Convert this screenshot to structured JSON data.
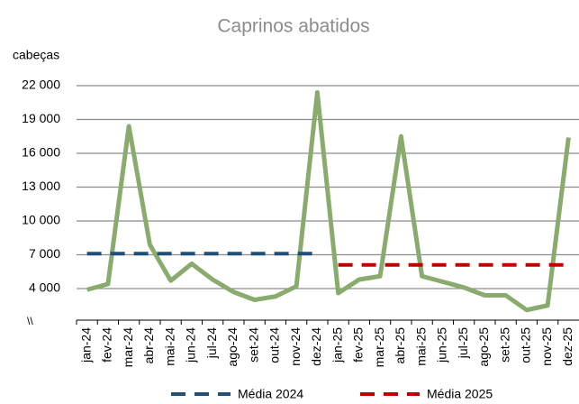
{
  "chart_data": {
    "type": "line",
    "title": "Caprinos abatidos",
    "y_label": "cabeças",
    "categories": [
      "jan-24",
      "fev-24",
      "mar-24",
      "abr-24",
      "mai-24",
      "jun-24",
      "jul-24",
      "ago-24",
      "set-24",
      "out-24",
      "nov-24",
      "dez-24",
      "jan-25",
      "fev-25",
      "mar-25",
      "abr-25",
      "mai-25",
      "jun-25",
      "jul-25",
      "ago-25",
      "set-25",
      "out-25",
      "nov-25",
      "dez-25"
    ],
    "series": [
      {
        "name": null,
        "color": "#8aab6e",
        "values": [
          3900,
          4400,
          18400,
          7900,
          4700,
          6200,
          4800,
          3700,
          3000,
          3300,
          4200,
          21400,
          3600,
          4800,
          5100,
          17500,
          5100,
          4600,
          4100,
          3400,
          3400,
          2100,
          2500,
          17400
        ]
      },
      {
        "name": "Média 2024",
        "color": "#1f4e79",
        "dashed": true,
        "values": [
          7100,
          7100,
          7100,
          7100,
          7100,
          7100,
          7100,
          7100,
          7100,
          7100,
          7100,
          7100,
          null,
          null,
          null,
          null,
          null,
          null,
          null,
          null,
          null,
          null,
          null,
          null
        ]
      },
      {
        "name": "Média 2025",
        "color": "#c00000",
        "dashed": true,
        "values": [
          null,
          null,
          null,
          null,
          null,
          null,
          null,
          null,
          null,
          null,
          null,
          null,
          6100,
          6100,
          6100,
          6100,
          6100,
          6100,
          6100,
          6100,
          6100,
          6100,
          6100,
          6100
        ]
      }
    ],
    "ylim": [
      1000,
      22000
    ],
    "yticks": [
      {
        "value": 4000,
        "label": "4 000"
      },
      {
        "value": 7000,
        "label": "7 000"
      },
      {
        "value": 10000,
        "label": "10 000"
      },
      {
        "value": 13000,
        "label": "13 000"
      },
      {
        "value": 16000,
        "label": "16 000"
      },
      {
        "value": 19000,
        "label": "19 000"
      },
      {
        "value": 22000,
        "label": "22 000"
      }
    ],
    "grid": true
  }
}
